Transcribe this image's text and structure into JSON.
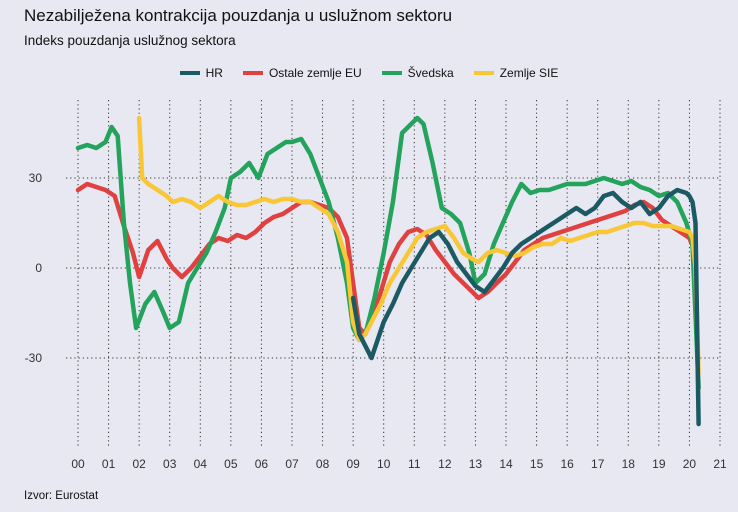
{
  "chart_data": {
    "type": "line",
    "title": "Nezabilježena kontrakcija pouzdanja u uslužnom sektoru",
    "subtitle": "Indeks pouzdanja uslužnog sektora",
    "source": "Izvor: Eurostat",
    "xlabel": "",
    "ylabel": "",
    "xlim": [
      2000,
      2021
    ],
    "ylim": [
      -60,
      56
    ],
    "x_ticks": [
      "00",
      "01",
      "02",
      "03",
      "04",
      "05",
      "06",
      "07",
      "08",
      "09",
      "10",
      "11",
      "12",
      "13",
      "14",
      "15",
      "16",
      "17",
      "18",
      "19",
      "20",
      "21"
    ],
    "y_ticks": [
      "30",
      "0",
      "-30"
    ],
    "y_tick_values": [
      30,
      0,
      -30
    ],
    "legend_position": "top-center",
    "grid": "dotted",
    "series": [
      {
        "name": "Ostale zemlje EU",
        "color": "#e14040",
        "x": [
          2000.0,
          2000.3,
          2000.6,
          2000.9,
          2001.2,
          2001.5,
          2001.8,
          2002.0,
          2002.3,
          2002.6,
          2002.9,
          2003.1,
          2003.4,
          2003.7,
          2004.0,
          2004.3,
          2004.6,
          2004.9,
          2005.2,
          2005.5,
          2005.8,
          2006.1,
          2006.4,
          2006.7,
          2007.0,
          2007.3,
          2007.6,
          2007.9,
          2008.2,
          2008.5,
          2008.8,
          2009.0,
          2009.2,
          2009.4,
          2009.6,
          2009.9,
          2010.2,
          2010.5,
          2010.8,
          2011.1,
          2011.4,
          2011.7,
          2012.0,
          2012.3,
          2012.6,
          2012.9,
          2013.1,
          2013.4,
          2013.7,
          2014.0,
          2014.3,
          2014.6,
          2014.9,
          2015.2,
          2015.5,
          2015.8,
          2016.1,
          2016.4,
          2016.7,
          2017.0,
          2017.3,
          2017.6,
          2017.9,
          2018.2,
          2018.5,
          2018.8,
          2019.1,
          2019.4,
          2019.7,
          2020.0,
          2020.2
        ],
        "values": [
          26,
          28,
          27,
          26,
          24,
          14,
          5,
          -3,
          6,
          9,
          3,
          0,
          -3,
          0,
          4,
          8,
          10,
          9,
          11,
          10,
          12,
          15,
          17,
          18,
          20,
          22,
          22,
          21,
          20,
          17,
          10,
          -5,
          -20,
          -22,
          -17,
          -8,
          2,
          8,
          12,
          13,
          11,
          6,
          2,
          -2,
          -5,
          -8,
          -10,
          -8,
          -5,
          -2,
          2,
          6,
          8,
          10,
          11,
          12,
          13,
          14,
          15,
          16,
          17,
          18,
          19,
          21,
          22,
          20,
          16,
          14,
          12,
          10,
          5
        ]
      },
      {
        "name": "Švedska",
        "color": "#23a35b",
        "x": [
          2000.0,
          2000.3,
          2000.6,
          2000.9,
          2001.1,
          2001.3,
          2001.5,
          2001.7,
          2001.9,
          2002.2,
          2002.5,
          2002.8,
          2003.0,
          2003.3,
          2003.6,
          2003.9,
          2004.2,
          2004.5,
          2004.8,
          2005.0,
          2005.3,
          2005.6,
          2005.9,
          2006.2,
          2006.5,
          2006.8,
          2007.0,
          2007.3,
          2007.6,
          2007.9,
          2008.2,
          2008.5,
          2008.8,
          2009.0,
          2009.2,
          2009.4,
          2009.7,
          2010.0,
          2010.3,
          2010.6,
          2010.9,
          2011.1,
          2011.3,
          2011.6,
          2011.9,
          2012.2,
          2012.5,
          2012.8,
          2013.0,
          2013.3,
          2013.6,
          2013.9,
          2014.2,
          2014.5,
          2014.8,
          2015.1,
          2015.4,
          2015.7,
          2016.0,
          2016.3,
          2016.6,
          2016.9,
          2017.2,
          2017.5,
          2017.8,
          2018.1,
          2018.4,
          2018.7,
          2019.0,
          2019.3,
          2019.6,
          2019.9,
          2020.1,
          2020.3
        ],
        "values": [
          40,
          41,
          40,
          42,
          47,
          44,
          15,
          -5,
          -20,
          -12,
          -8,
          -15,
          -20,
          -18,
          -5,
          0,
          5,
          12,
          20,
          30,
          32,
          35,
          30,
          38,
          40,
          42,
          42,
          43,
          38,
          30,
          22,
          10,
          -5,
          -20,
          -24,
          -22,
          -10,
          5,
          22,
          45,
          48,
          50,
          48,
          35,
          20,
          18,
          15,
          5,
          -5,
          -2,
          8,
          15,
          22,
          28,
          25,
          26,
          26,
          27,
          28,
          28,
          28,
          29,
          30,
          29,
          28,
          29,
          27,
          26,
          24,
          25,
          22,
          15,
          8,
          -40
        ]
      },
      {
        "name": "Zemlje SIE",
        "color": "#f9c636",
        "x": [
          2002.0,
          2002.1,
          2002.3,
          2002.6,
          2002.9,
          2003.1,
          2003.4,
          2003.7,
          2004.0,
          2004.3,
          2004.6,
          2004.9,
          2005.2,
          2005.5,
          2005.8,
          2006.1,
          2006.4,
          2006.7,
          2007.0,
          2007.3,
          2007.6,
          2007.9,
          2008.2,
          2008.5,
          2008.8,
          2009.0,
          2009.2,
          2009.4,
          2009.6,
          2009.9,
          2010.2,
          2010.5,
          2010.8,
          2011.1,
          2011.4,
          2011.7,
          2012.0,
          2012.3,
          2012.6,
          2012.9,
          2013.1,
          2013.4,
          2013.7,
          2014.0,
          2014.3,
          2014.6,
          2014.9,
          2015.2,
          2015.5,
          2015.8,
          2016.1,
          2016.4,
          2016.7,
          2017.0,
          2017.3,
          2017.6,
          2017.9,
          2018.2,
          2018.5,
          2018.8,
          2019.1,
          2019.4,
          2019.7,
          2020.0,
          2020.1,
          2020.2,
          2020.3
        ],
        "values": [
          50,
          30,
          28,
          26,
          24,
          22,
          23,
          22,
          20,
          22,
          24,
          22,
          21,
          21,
          22,
          23,
          22,
          23,
          23,
          22,
          22,
          20,
          18,
          12,
          2,
          -18,
          -24,
          -22,
          -18,
          -12,
          -5,
          0,
          5,
          10,
          12,
          13,
          14,
          10,
          5,
          3,
          2,
          5,
          6,
          5,
          4,
          5,
          7,
          8,
          8,
          10,
          9,
          10,
          11,
          12,
          12,
          13,
          14,
          15,
          15,
          14,
          14,
          14,
          13,
          12,
          10,
          0,
          -35
        ]
      },
      {
        "name": "HR",
        "color": "#1c5a63",
        "x": [
          2009.0,
          2009.2,
          2009.4,
          2009.6,
          2009.8,
          2010.0,
          2010.3,
          2010.6,
          2010.9,
          2011.2,
          2011.5,
          2011.8,
          2012.1,
          2012.4,
          2012.7,
          2013.0,
          2013.3,
          2013.6,
          2013.9,
          2014.2,
          2014.5,
          2014.8,
          2015.1,
          2015.4,
          2015.7,
          2016.0,
          2016.3,
          2016.6,
          2016.9,
          2017.2,
          2017.5,
          2017.8,
          2018.1,
          2018.4,
          2018.7,
          2019.0,
          2019.3,
          2019.6,
          2019.9,
          2020.0,
          2020.1,
          2020.2,
          2020.3
        ],
        "values": [
          -10,
          -22,
          -26,
          -30,
          -24,
          -18,
          -12,
          -5,
          0,
          5,
          10,
          12,
          8,
          2,
          -2,
          -6,
          -8,
          -4,
          0,
          5,
          8,
          10,
          12,
          14,
          16,
          18,
          20,
          18,
          20,
          24,
          25,
          22,
          20,
          22,
          18,
          20,
          24,
          26,
          25,
          24,
          22,
          15,
          -52
        ]
      }
    ]
  }
}
